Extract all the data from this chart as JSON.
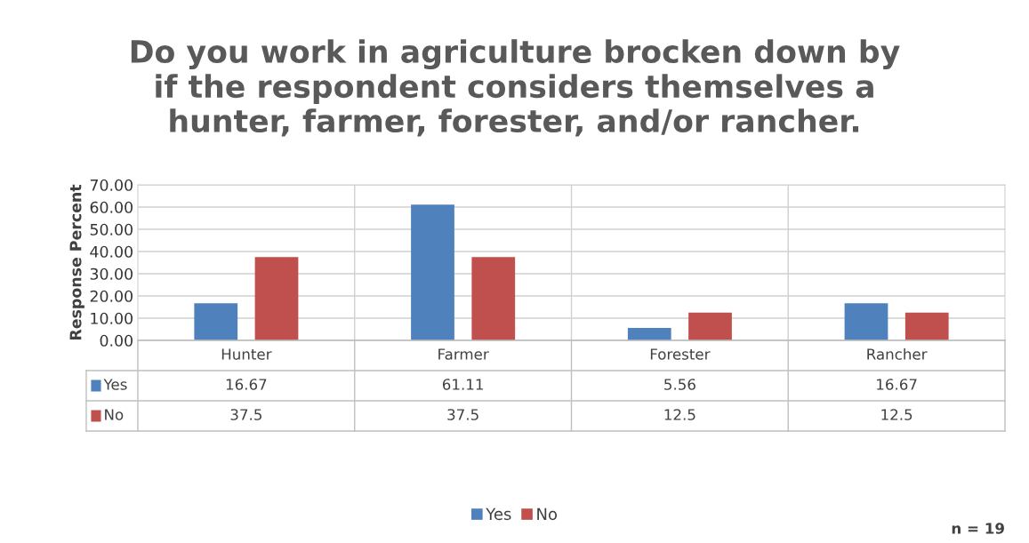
{
  "chart_data": {
    "type": "bar",
    "title": "Do you work in agriculture brocken down by\nif the respondent considers themselves a\nhunter, farmer, forester, and/or rancher.",
    "ylabel": "Response Percent",
    "categories": [
      "Hunter",
      "Farmer",
      "Forester",
      "Rancher"
    ],
    "series": [
      {
        "name": "Yes",
        "color": "#4f81bd",
        "values": [
          16.67,
          61.11,
          5.56,
          16.67
        ]
      },
      {
        "name": "No",
        "color": "#c0504d",
        "values": [
          37.5,
          37.5,
          12.5,
          12.5
        ]
      }
    ],
    "ylim": [
      0,
      70
    ],
    "yticks": [
      {
        "value": 0,
        "label": "0.00"
      },
      {
        "value": 10,
        "label": "10.00"
      },
      {
        "value": 20,
        "label": "20.00"
      },
      {
        "value": 30,
        "label": "30.00"
      },
      {
        "value": 40,
        "label": "40.00"
      },
      {
        "value": 50,
        "label": "50.00"
      },
      {
        "value": 60,
        "label": "60.00"
      },
      {
        "value": 70,
        "label": "70.00"
      }
    ],
    "grid": "y",
    "data_labels": true,
    "legend": "bottom",
    "annotations": [
      "n = 19"
    ]
  }
}
